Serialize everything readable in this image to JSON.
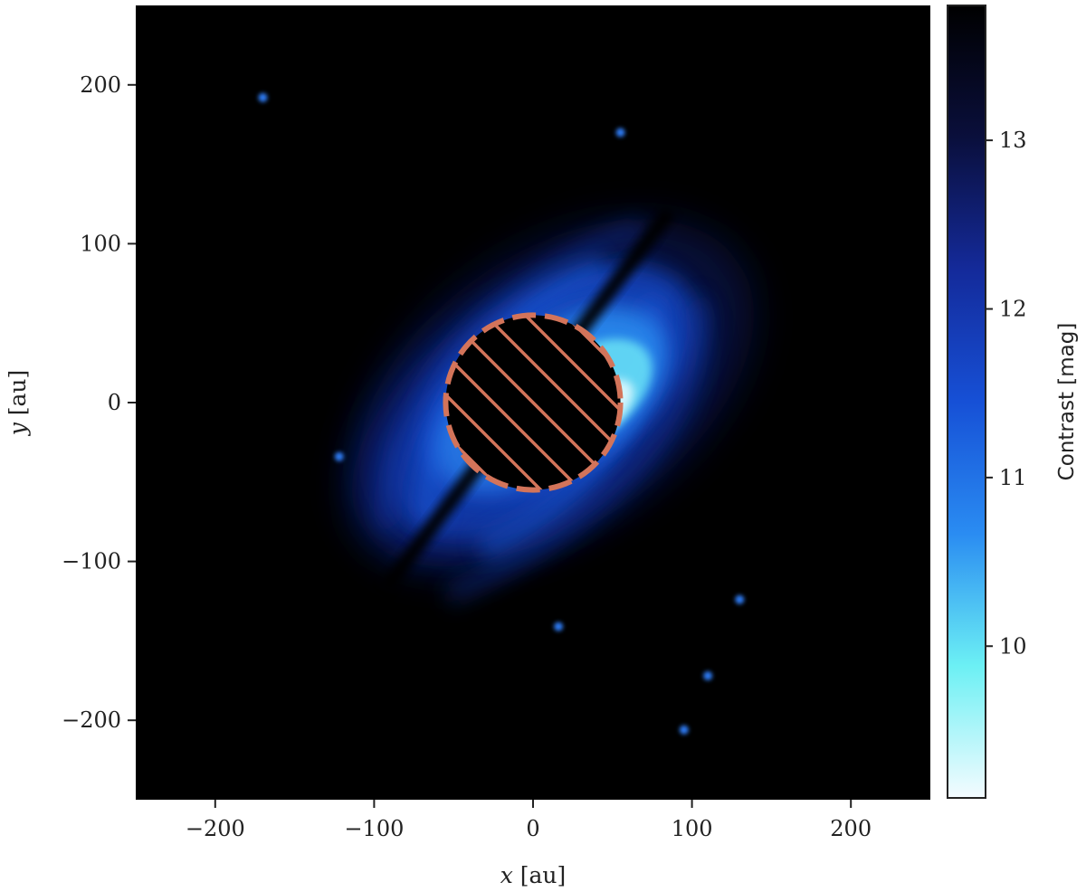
{
  "chart_data": {
    "type": "heatmap",
    "title": "",
    "xlabel": {
      "var": "x",
      "unit": " [au]"
    },
    "ylabel": {
      "var": "y",
      "unit": " [au]"
    },
    "xlim": [
      -250,
      250
    ],
    "ylim": [
      -250,
      250
    ],
    "xticks": [
      -200,
      -100,
      0,
      100,
      200
    ],
    "yticks": [
      -200,
      -100,
      0,
      100,
      200
    ],
    "xtick_labels": [
      "−200",
      "−100",
      "0",
      "100",
      "200"
    ],
    "ytick_labels": [
      "−200",
      "−100",
      "0",
      "100",
      "200"
    ],
    "grid": false,
    "background": "#000000",
    "colorbar": {
      "label": "Contrast [mag]",
      "range": [
        9.1,
        13.8
      ],
      "ticks": [
        10,
        11,
        12,
        13
      ],
      "tick_labels": [
        "10",
        "11",
        "12",
        "13"
      ],
      "colors": [
        "#000000",
        "#0a0f3c",
        "#142a9a",
        "#1650d6",
        "#2a8cf2",
        "#6cf0f4",
        "#f4fbff"
      ]
    },
    "mask": {
      "center": [
        0,
        0
      ],
      "radius_au": 55,
      "edge_color": "#d3745a",
      "hatch": "diagonal"
    },
    "point_sources": [
      {
        "x": -170,
        "y": 192
      },
      {
        "x": 16,
        "y": -141
      },
      {
        "x": 130,
        "y": -124
      },
      {
        "x": 55,
        "y": 170
      },
      {
        "x": -122,
        "y": -34
      },
      {
        "x": 110,
        "y": -172
      },
      {
        "x": 95,
        "y": -206
      }
    ]
  }
}
